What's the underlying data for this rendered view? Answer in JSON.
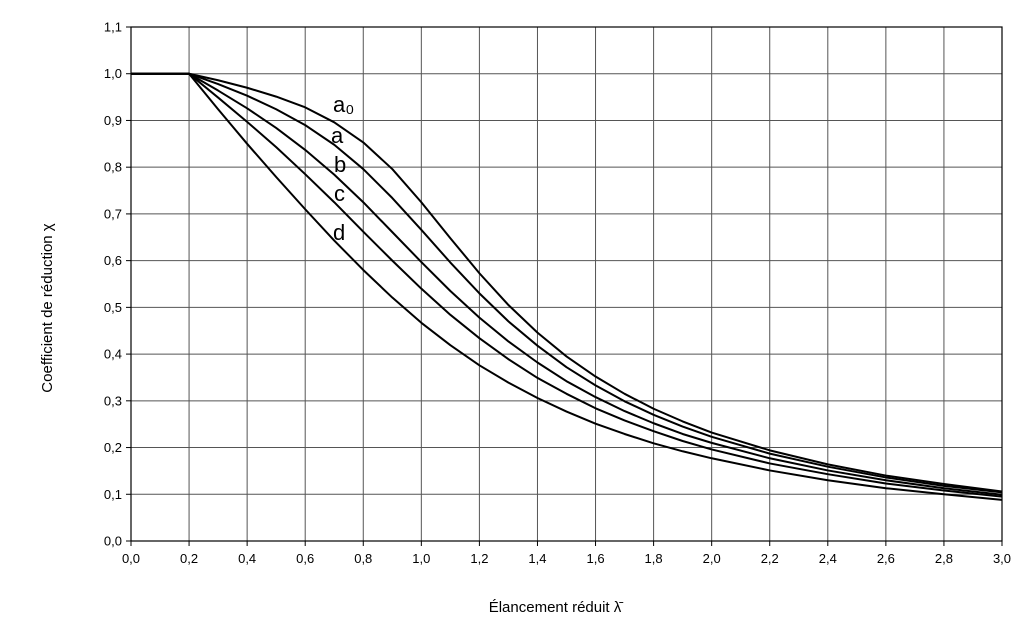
{
  "chart_data": {
    "type": "line",
    "x_label": "Élancement réduit λ̄",
    "y_label": "Coefficient de réduction χ",
    "x": [
      0,
      0.2,
      0.3,
      0.4,
      0.5,
      0.6,
      0.7,
      0.8,
      0.9,
      1.0,
      1.1,
      1.2,
      1.3,
      1.4,
      1.5,
      1.6,
      1.7,
      1.8,
      1.9,
      2.0,
      2.2,
      2.4,
      2.6,
      2.8,
      3.0
    ],
    "series": [
      {
        "name": "a₀",
        "color": "#000000",
        "values": [
          1,
          1,
          0.986,
          0.97,
          0.951,
          0.928,
          0.896,
          0.853,
          0.796,
          0.725,
          0.648,
          0.573,
          0.505,
          0.446,
          0.395,
          0.352,
          0.315,
          0.283,
          0.256,
          0.232,
          0.194,
          0.164,
          0.14,
          0.122,
          0.106
        ]
      },
      {
        "name": "a",
        "color": "#000000",
        "values": [
          1,
          1,
          0.978,
          0.953,
          0.924,
          0.89,
          0.848,
          0.796,
          0.734,
          0.666,
          0.596,
          0.53,
          0.47,
          0.418,
          0.372,
          0.333,
          0.299,
          0.27,
          0.245,
          0.223,
          0.187,
          0.159,
          0.136,
          0.118,
          0.104
        ]
      },
      {
        "name": "b",
        "color": "#000000",
        "values": [
          1,
          1,
          0.964,
          0.926,
          0.884,
          0.837,
          0.784,
          0.725,
          0.661,
          0.597,
          0.535,
          0.478,
          0.427,
          0.382,
          0.342,
          0.308,
          0.278,
          0.252,
          0.229,
          0.21,
          0.177,
          0.151,
          0.13,
          0.113,
          0.099
        ]
      },
      {
        "name": "c",
        "color": "#000000",
        "values": [
          1,
          1,
          0.949,
          0.897,
          0.843,
          0.785,
          0.725,
          0.662,
          0.6,
          0.54,
          0.484,
          0.434,
          0.389,
          0.349,
          0.315,
          0.284,
          0.258,
          0.235,
          0.214,
          0.196,
          0.166,
          0.143,
          0.123,
          0.108,
          0.095
        ]
      },
      {
        "name": "d",
        "color": "#000000",
        "values": [
          1,
          1,
          0.924,
          0.85,
          0.779,
          0.71,
          0.643,
          0.58,
          0.521,
          0.467,
          0.419,
          0.376,
          0.339,
          0.306,
          0.277,
          0.251,
          0.229,
          0.209,
          0.192,
          0.177,
          0.151,
          0.13,
          0.113,
          0.1,
          0.088
        ]
      }
    ],
    "xlim": [
      0,
      3.0
    ],
    "ylim": [
      0,
      1.1
    ],
    "xticks": [
      {
        "value": 0,
        "label": "0,0"
      },
      {
        "value": 0.2,
        "label": "0,2"
      },
      {
        "value": 0.4,
        "label": "0,4"
      },
      {
        "value": 0.6,
        "label": "0,6"
      },
      {
        "value": 0.8,
        "label": "0,8"
      },
      {
        "value": 1.0,
        "label": "1,0"
      },
      {
        "value": 1.2,
        "label": "1,2"
      },
      {
        "value": 1.4,
        "label": "1,4"
      },
      {
        "value": 1.6,
        "label": "1,6"
      },
      {
        "value": 1.8,
        "label": "1,8"
      },
      {
        "value": 2.0,
        "label": "2,0"
      },
      {
        "value": 2.2,
        "label": "2,2"
      },
      {
        "value": 2.4,
        "label": "2,4"
      },
      {
        "value": 2.6,
        "label": "2,6"
      },
      {
        "value": 2.8,
        "label": "2,8"
      },
      {
        "value": 3.0,
        "label": "3,0"
      }
    ],
    "yticks": [
      {
        "value": 0,
        "label": "0,0"
      },
      {
        "value": 0.1,
        "label": "0,1"
      },
      {
        "value": 0.2,
        "label": "0,2"
      },
      {
        "value": 0.3,
        "label": "0,3"
      },
      {
        "value": 0.4,
        "label": "0,4"
      },
      {
        "value": 0.5,
        "label": "0,5"
      },
      {
        "value": 0.6,
        "label": "0,6"
      },
      {
        "value": 0.7,
        "label": "0,7"
      },
      {
        "value": 0.8,
        "label": "0,8"
      },
      {
        "value": 0.9,
        "label": "0,9"
      },
      {
        "value": 1.0,
        "label": "1,0"
      },
      {
        "value": 1.1,
        "label": "1,1"
      }
    ],
    "grid": true
  }
}
